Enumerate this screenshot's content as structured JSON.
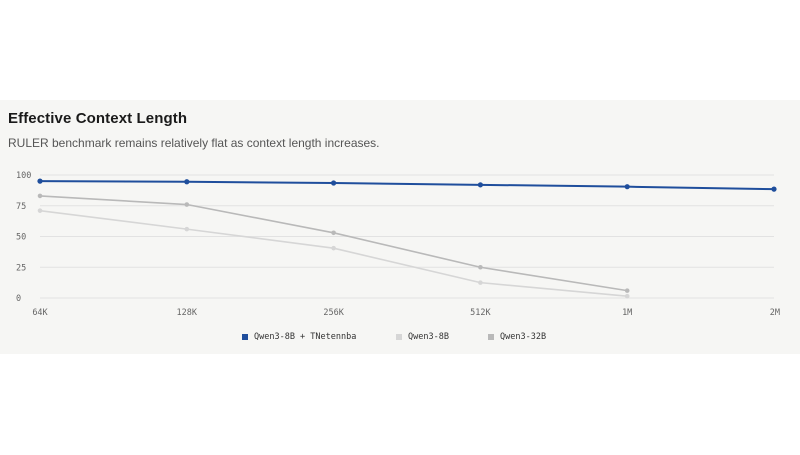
{
  "chart_data": {
    "type": "line",
    "title": "Effective Context Length",
    "subtitle": "RULER benchmark remains relatively flat as context length increases.",
    "xlabel": "",
    "ylabel": "",
    "categories": [
      "64K",
      "128K",
      "256K",
      "512K",
      "1M",
      "2M"
    ],
    "yticks": [
      "100",
      "75",
      "50",
      "25",
      "0"
    ],
    "ylim": [
      0,
      100
    ],
    "grid": true,
    "legend_position": "bottom",
    "series": [
      {
        "name": "Qwen3-8B + TNetennba",
        "color": "#1f4e9c",
        "values": [
          95,
          94.5,
          93.5,
          92,
          90.5,
          88.5
        ]
      },
      {
        "name": "Qwen3-8B",
        "color": "#d6d6d6",
        "values": [
          71,
          56,
          40.5,
          12.5,
          1.5,
          null
        ]
      },
      {
        "name": "Qwen3-32B",
        "color": "#b9b9b9",
        "values": [
          83,
          76,
          53,
          25,
          6,
          null
        ]
      }
    ]
  }
}
